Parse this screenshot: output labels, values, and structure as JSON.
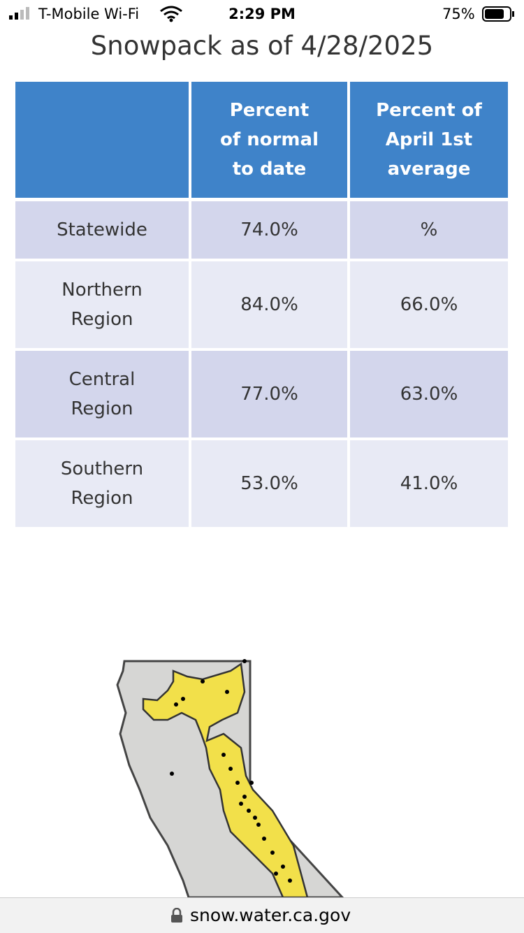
{
  "status_bar": {
    "carrier": "T-Mobile Wi-Fi",
    "time": "2:29 PM",
    "battery": "75%"
  },
  "title": "Snowpack as of 4/28/2025",
  "table": {
    "columns": [
      [
        "Percent",
        "of normal",
        "to date"
      ],
      [
        "Percent of",
        "April 1st",
        "average"
      ]
    ],
    "rows": [
      {
        "label": [
          "Statewide"
        ],
        "cells": [
          "74.0%",
          "%"
        ]
      },
      {
        "label": [
          "Northern",
          "Region"
        ],
        "cells": [
          "84.0%",
          "66.0%"
        ]
      },
      {
        "label": [
          "Central",
          "Region"
        ],
        "cells": [
          "77.0%",
          "63.0%"
        ]
      },
      {
        "label": [
          "Southern",
          "Region"
        ],
        "cells": [
          "53.0%",
          "41.0%"
        ]
      }
    ]
  },
  "url": "snow.water.ca.gov"
}
